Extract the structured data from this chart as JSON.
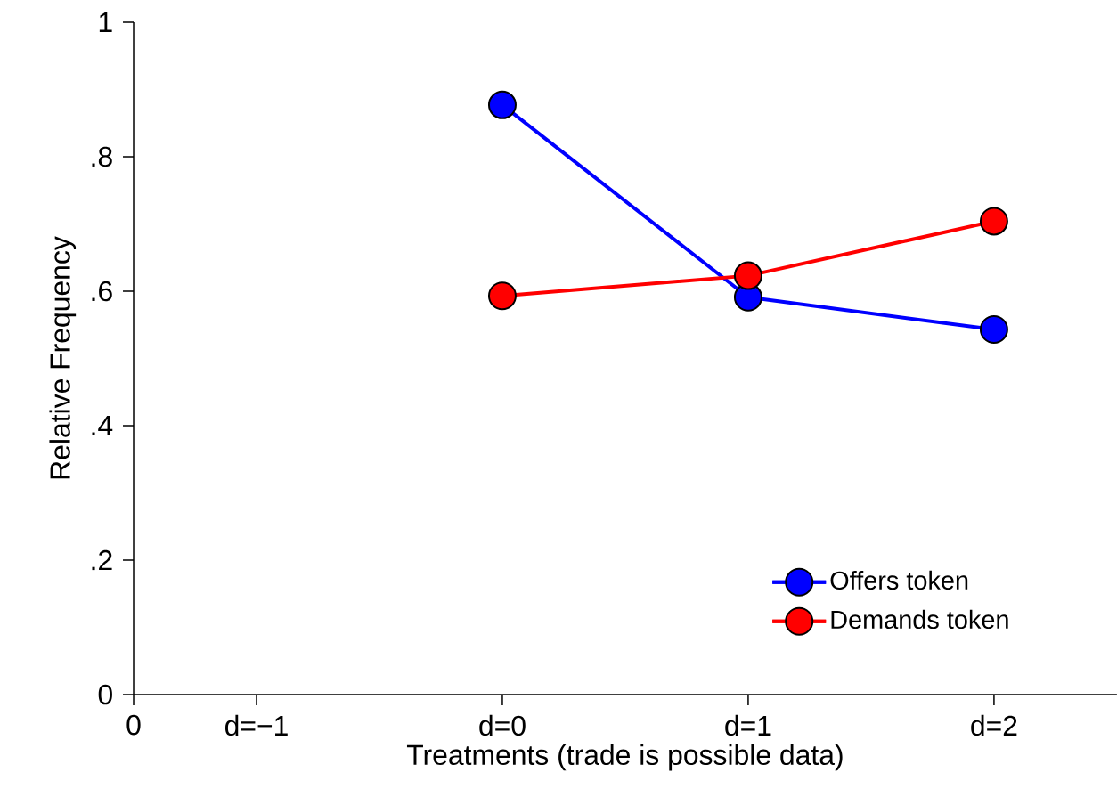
{
  "chart_data": {
    "type": "line",
    "xlabel": "Treatments (trade is possible data)",
    "ylabel": "Relative Frequency",
    "categories": [
      "0",
      "d=−1",
      null,
      "d=0",
      null,
      "d=1",
      null,
      "d=2",
      null
    ],
    "series": [
      {
        "name": "Offers token",
        "color": "#0000ff",
        "values": [
          null,
          null,
          null,
          0.877,
          null,
          0.591,
          null,
          0.543,
          null
        ]
      },
      {
        "name": "Demands token",
        "color": "#ff0000",
        "values": [
          null,
          null,
          null,
          0.593,
          null,
          0.623,
          null,
          0.704,
          null
        ]
      }
    ],
    "ylim": [
      0,
      1
    ],
    "yticks": [
      0,
      {
        "value": 0.2,
        "label": ".2"
      },
      {
        "value": 0.4,
        "label": ".4"
      },
      {
        "value": 0.6,
        "label": ".6"
      },
      {
        "value": 0.8,
        "label": ".8"
      },
      1
    ],
    "grid": false,
    "legend": "bottom right",
    "marker": "circle",
    "line_style": "solid"
  }
}
